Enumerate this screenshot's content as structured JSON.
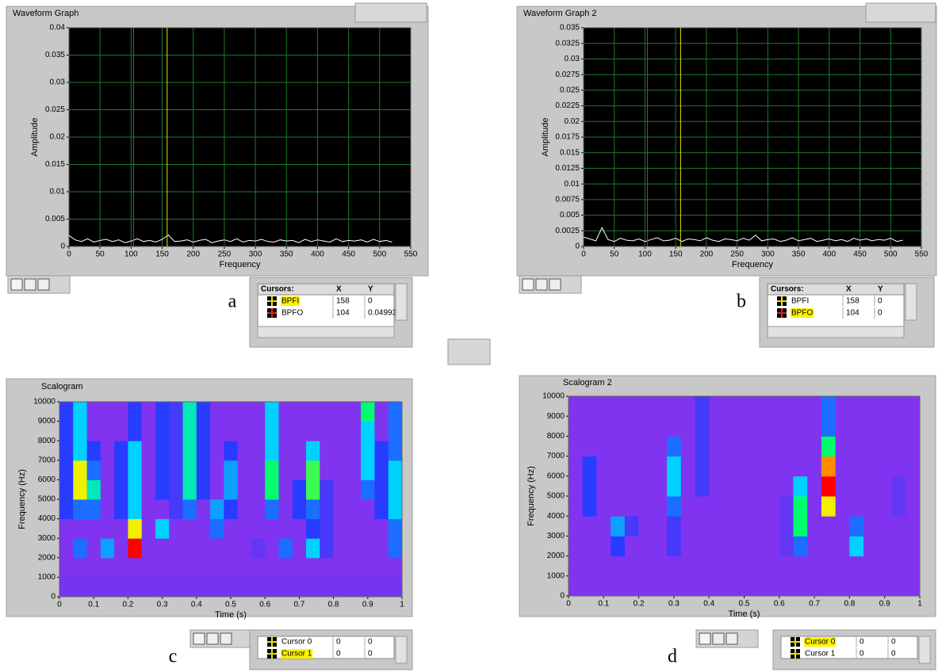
{
  "chart_data": [
    {
      "type": "line",
      "title": "Waveform Graph",
      "x_label": "Frequency",
      "y_label": "Amplitude",
      "caption": "a",
      "xlim": [
        0,
        550
      ],
      "ylim": [
        0,
        0.04
      ],
      "xticks": [
        0,
        50,
        100,
        150,
        200,
        250,
        300,
        350,
        400,
        450,
        500,
        550
      ],
      "yticks": [
        0,
        0.005,
        0.01,
        0.015,
        0.02,
        0.025,
        0.03,
        0.035,
        0.04
      ],
      "grid": true,
      "color": "#ffffff",
      "x": [
        0,
        10,
        20,
        30,
        40,
        50,
        60,
        70,
        80,
        90,
        100,
        110,
        120,
        130,
        140,
        150,
        160,
        170,
        180,
        190,
        200,
        210,
        220,
        230,
        240,
        250,
        260,
        270,
        280,
        290,
        300,
        310,
        320,
        330,
        340,
        350,
        360,
        370,
        380,
        390,
        400,
        410,
        420,
        430,
        440,
        450,
        460,
        470,
        480,
        490,
        500,
        510,
        520
      ],
      "values": [
        0.002,
        0.0012,
        0.0009,
        0.0014,
        0.0008,
        0.0011,
        0.0013,
        0.0009,
        0.0012,
        0.0007,
        0.001,
        0.0014,
        0.0009,
        0.0011,
        0.0008,
        0.0013,
        0.0021,
        0.0009,
        0.001,
        0.0012,
        0.0008,
        0.0011,
        0.0013,
        0.0007,
        0.001,
        0.0012,
        0.0009,
        0.0014,
        0.0008,
        0.0011,
        0.001,
        0.0013,
        0.0009,
        0.0008,
        0.0012,
        0.001,
        0.0011,
        0.0007,
        0.0013,
        0.0009,
        0.0012,
        0.001,
        0.0008,
        0.0014,
        0.0009,
        0.0011,
        0.001,
        0.0012,
        0.0008,
        0.0013,
        0.0009,
        0.0011,
        0.0008
      ],
      "cursor_header": [
        "Cursors:",
        "X",
        "Y"
      ],
      "cursors": [
        {
          "name": "BPFI",
          "x": 158,
          "y": 0,
          "color": "#e8e000"
        },
        {
          "name": "BPFO",
          "x": 104,
          "y": 0.04993,
          "color": "#e02020"
        }
      ],
      "active_cursor": 0
    },
    {
      "type": "line",
      "title": "Waveform Graph 2",
      "x_label": "Frequency",
      "y_label": "Amplitude",
      "caption": "b",
      "xlim": [
        0,
        550
      ],
      "ylim": [
        0,
        0.035
      ],
      "xticks": [
        0,
        50,
        100,
        150,
        200,
        250,
        300,
        350,
        400,
        450,
        500,
        550
      ],
      "yticks": [
        0,
        0.0025,
        0.005,
        0.0075,
        0.01,
        0.0125,
        0.015,
        0.0175,
        0.02,
        0.0225,
        0.025,
        0.0275,
        0.03,
        0.0325,
        0.035
      ],
      "grid": true,
      "color": "#ffffff",
      "x": [
        0,
        10,
        20,
        30,
        40,
        50,
        60,
        70,
        80,
        90,
        100,
        110,
        120,
        130,
        140,
        150,
        160,
        170,
        180,
        190,
        200,
        210,
        220,
        230,
        240,
        250,
        260,
        270,
        280,
        290,
        300,
        310,
        320,
        330,
        340,
        350,
        360,
        370,
        380,
        390,
        400,
        410,
        420,
        430,
        440,
        450,
        460,
        470,
        480,
        490,
        500,
        510,
        520
      ],
      "values": [
        0.0015,
        0.0012,
        0.0009,
        0.003,
        0.0011,
        0.0008,
        0.0013,
        0.001,
        0.0009,
        0.0012,
        0.0008,
        0.0011,
        0.0014,
        0.0009,
        0.001,
        0.0013,
        0.0008,
        0.0012,
        0.0011,
        0.0009,
        0.0014,
        0.001,
        0.0008,
        0.0012,
        0.0011,
        0.0009,
        0.0013,
        0.001,
        0.0018,
        0.0009,
        0.0011,
        0.0012,
        0.0008,
        0.001,
        0.0014,
        0.0009,
        0.0011,
        0.0013,
        0.0008,
        0.001,
        0.0012,
        0.0009,
        0.0011,
        0.0008,
        0.0013,
        0.001,
        0.0012,
        0.0009,
        0.0011,
        0.001,
        0.0013,
        0.0008,
        0.001
      ],
      "cursor_header": [
        "Cursors:",
        "X",
        "Y"
      ],
      "cursors": [
        {
          "name": "BPFI",
          "x": 158,
          "y": 0,
          "color": "#e8e000"
        },
        {
          "name": "BPFO",
          "x": 104,
          "y": 0,
          "color": "#e02020"
        }
      ],
      "active_cursor": 1
    },
    {
      "type": "heatmap",
      "title": "Scalogram",
      "x_label": "Time (s)",
      "y_label": "Frequency (Hz)",
      "caption": "c",
      "xlim": [
        0,
        1
      ],
      "ylim": [
        0,
        10000
      ],
      "xticks": [
        0,
        0.1,
        0.2,
        0.3,
        0.4,
        0.5,
        0.6,
        0.7,
        0.8,
        0.9,
        1
      ],
      "yticks": [
        0,
        1000,
        2000,
        3000,
        4000,
        5000,
        6000,
        7000,
        8000,
        9000,
        10000
      ],
      "z": [
        [
          0.12,
          0.12,
          0.12,
          0.12,
          0.12,
          0.12,
          0.12,
          0.12,
          0.12,
          0.12,
          0.12,
          0.12,
          0.12,
          0.12,
          0.12,
          0.12,
          0.12,
          0.12,
          0.12,
          0.12,
          0.12,
          0.12,
          0.12,
          0.12,
          0.12
        ],
        [
          0.1,
          0.1,
          0.1,
          0.1,
          0.1,
          0.1,
          0.1,
          0.1,
          0.1,
          0.1,
          0.1,
          0.1,
          0.1,
          0.1,
          0.1,
          0.1,
          0.1,
          0.1,
          0.1,
          0.1,
          0.1,
          0.1,
          0.1,
          0.1,
          0.1
        ],
        [
          0.1,
          0.3,
          0.1,
          0.35,
          0.1,
          1,
          0.1,
          0.1,
          0.1,
          0.1,
          0.1,
          0.1,
          0.1,
          0.1,
          0.15,
          0.1,
          0.3,
          0.1,
          0.4,
          0.2,
          0.1,
          0.1,
          0.1,
          0.1,
          0.3
        ],
        [
          0.1,
          0.1,
          0.1,
          0.1,
          0.1,
          0.7,
          0.1,
          0.4,
          0.1,
          0.1,
          0.1,
          0.3,
          0.1,
          0.1,
          0.1,
          0.1,
          0.1,
          0.1,
          0.25,
          0.2,
          0.1,
          0.1,
          0.1,
          0.1,
          0.3
        ],
        [
          0.25,
          0.3,
          0.3,
          0.1,
          0.25,
          0.4,
          0.1,
          0.1,
          0.2,
          0.3,
          0.1,
          0.35,
          0.25,
          0.1,
          0.1,
          0.3,
          0.1,
          0.25,
          0.3,
          0.2,
          0.1,
          0.1,
          0.1,
          0.25,
          0.4
        ],
        [
          0.25,
          0.7,
          0.45,
          0.1,
          0.25,
          0.4,
          0.1,
          0.25,
          0.2,
          0.45,
          0.25,
          0.1,
          0.35,
          0.1,
          0.1,
          0.5,
          0.1,
          0.25,
          0.55,
          0.2,
          0.1,
          0.1,
          0.3,
          0.25,
          0.4
        ],
        [
          0.25,
          0.7,
          0.3,
          0.1,
          0.25,
          0.4,
          0.1,
          0.25,
          0.2,
          0.45,
          0.25,
          0.1,
          0.35,
          0.1,
          0.1,
          0.5,
          0.1,
          0.1,
          0.55,
          0.1,
          0.1,
          0.1,
          0.4,
          0.25,
          0.4
        ],
        [
          0.25,
          0.4,
          0.25,
          0.1,
          0.25,
          0.4,
          0.1,
          0.25,
          0.2,
          0.45,
          0.25,
          0.1,
          0.25,
          0.1,
          0.1,
          0.4,
          0.1,
          0.1,
          0.4,
          0.1,
          0.1,
          0.1,
          0.4,
          0.25,
          0.3
        ],
        [
          0.25,
          0.4,
          0.1,
          0.1,
          0.1,
          0.25,
          0.1,
          0.25,
          0.2,
          0.45,
          0.25,
          0.1,
          0.1,
          0.1,
          0.1,
          0.4,
          0.1,
          0.1,
          0.1,
          0.1,
          0.1,
          0.1,
          0.4,
          0.1,
          0.3
        ],
        [
          0.25,
          0.4,
          0.1,
          0.1,
          0.1,
          0.25,
          0.1,
          0.25,
          0.2,
          0.45,
          0.25,
          0.1,
          0.1,
          0.1,
          0.1,
          0.4,
          0.1,
          0.1,
          0.1,
          0.1,
          0.1,
          0.1,
          0.5,
          0.1,
          0.3
        ]
      ],
      "cursors": [
        {
          "name": "Cursor 0",
          "x": 0,
          "y": 0
        },
        {
          "name": "Cursor 1",
          "x": 0,
          "y": 0
        }
      ],
      "active_cursor": 1
    },
    {
      "type": "heatmap",
      "title": "Scalogram 2",
      "x_label": "Time (s)",
      "y_label": "Frequency (Hz)",
      "caption": "d",
      "xlim": [
        0,
        1
      ],
      "ylim": [
        0,
        10000
      ],
      "xticks": [
        0,
        0.1,
        0.2,
        0.3,
        0.4,
        0.5,
        0.6,
        0.7,
        0.8,
        0.9,
        1
      ],
      "yticks": [
        0,
        1000,
        2000,
        3000,
        4000,
        5000,
        6000,
        7000,
        8000,
        9000,
        10000
      ],
      "z": [
        [
          0.1,
          0.1,
          0.1,
          0.1,
          0.1,
          0.1,
          0.1,
          0.1,
          0.1,
          0.1,
          0.1,
          0.1,
          0.1,
          0.1,
          0.1,
          0.1,
          0.1,
          0.1,
          0.1,
          0.1,
          0.1,
          0.1,
          0.1,
          0.1,
          0.1
        ],
        [
          0.1,
          0.1,
          0.1,
          0.1,
          0.1,
          0.1,
          0.1,
          0.1,
          0.1,
          0.1,
          0.1,
          0.1,
          0.1,
          0.1,
          0.1,
          0.1,
          0.1,
          0.1,
          0.1,
          0.1,
          0.1,
          0.1,
          0.1,
          0.1,
          0.1
        ],
        [
          0.1,
          0.1,
          0.1,
          0.25,
          0.1,
          0.1,
          0.1,
          0.2,
          0.1,
          0.1,
          0.1,
          0.1,
          0.1,
          0.1,
          0.1,
          0.15,
          0.3,
          0.1,
          0.1,
          0.1,
          0.4,
          0.1,
          0.1,
          0.1,
          0.1
        ],
        [
          0.1,
          0.1,
          0.1,
          0.35,
          0.2,
          0.1,
          0.1,
          0.2,
          0.1,
          0.1,
          0.1,
          0.1,
          0.1,
          0.1,
          0.1,
          0.15,
          0.5,
          0.1,
          0.1,
          0.1,
          0.3,
          0.1,
          0.1,
          0.1,
          0.1
        ],
        [
          0.1,
          0.25,
          0.1,
          0.1,
          0.1,
          0.1,
          0.1,
          0.3,
          0.1,
          0.1,
          0.1,
          0.1,
          0.1,
          0.1,
          0.1,
          0.15,
          0.5,
          0.1,
          0.7,
          0.1,
          0.1,
          0.1,
          0.1,
          0.15,
          0.1
        ],
        [
          0.1,
          0.25,
          0.1,
          0.1,
          0.1,
          0.1,
          0.1,
          0.4,
          0.1,
          0.2,
          0.1,
          0.1,
          0.1,
          0.1,
          0.1,
          0.1,
          0.4,
          0.1,
          1,
          0.1,
          0.1,
          0.1,
          0.1,
          0.15,
          0.1
        ],
        [
          0.1,
          0.25,
          0.1,
          0.1,
          0.1,
          0.1,
          0.1,
          0.4,
          0.1,
          0.2,
          0.1,
          0.1,
          0.1,
          0.1,
          0.1,
          0.1,
          0.1,
          0.1,
          0.85,
          0.1,
          0.1,
          0.1,
          0.1,
          0.1,
          0.1
        ],
        [
          0.1,
          0.1,
          0.1,
          0.1,
          0.1,
          0.1,
          0.1,
          0.3,
          0.1,
          0.2,
          0.1,
          0.1,
          0.1,
          0.1,
          0.1,
          0.1,
          0.1,
          0.1,
          0.5,
          0.1,
          0.1,
          0.1,
          0.1,
          0.1,
          0.1
        ],
        [
          0.1,
          0.1,
          0.1,
          0.1,
          0.1,
          0.1,
          0.1,
          0.1,
          0.1,
          0.2,
          0.1,
          0.1,
          0.1,
          0.1,
          0.1,
          0.1,
          0.1,
          0.1,
          0.3,
          0.1,
          0.1,
          0.1,
          0.1,
          0.1,
          0.1
        ],
        [
          0.1,
          0.1,
          0.1,
          0.1,
          0.1,
          0.1,
          0.1,
          0.1,
          0.1,
          0.2,
          0.1,
          0.1,
          0.1,
          0.1,
          0.1,
          0.1,
          0.1,
          0.1,
          0.3,
          0.1,
          0.1,
          0.1,
          0.1,
          0.1,
          0.1
        ]
      ],
      "cursors": [
        {
          "name": "Cursor 0",
          "x": 0,
          "y": 0
        },
        {
          "name": "Cursor 1",
          "x": 0,
          "y": 0
        }
      ],
      "active_cursor": 0
    }
  ]
}
